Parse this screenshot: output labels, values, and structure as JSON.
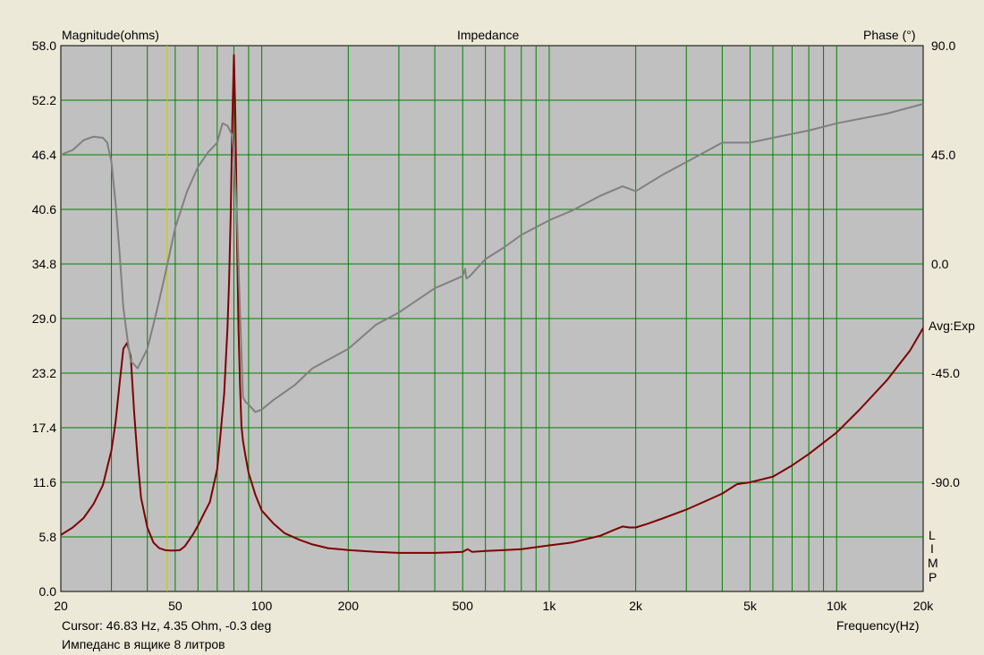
{
  "chart_data": {
    "type": "line",
    "title": "Impedance",
    "xlabel": "Frequency(Hz)",
    "ylabel": "Magnitude(ohms)",
    "y2label": "Phase (°)",
    "x_scale": "log",
    "xlim": [
      20,
      20000
    ],
    "ylim": [
      0,
      58
    ],
    "y2lim": [
      -135,
      90
    ],
    "x_ticks": [
      {
        "value": 20,
        "label": "20"
      },
      {
        "value": 50,
        "label": "50"
      },
      {
        "value": 100,
        "label": "100"
      },
      {
        "value": 200,
        "label": "200"
      },
      {
        "value": 500,
        "label": "500"
      },
      {
        "value": 1000,
        "label": "1k"
      },
      {
        "value": 2000,
        "label": "2k"
      },
      {
        "value": 5000,
        "label": "5k"
      },
      {
        "value": 10000,
        "label": "10k"
      },
      {
        "value": 20000,
        "label": "20k"
      }
    ],
    "x_gridlines": [
      30,
      40,
      50,
      60,
      70,
      80,
      90,
      100,
      200,
      300,
      400,
      500,
      600,
      700,
      800,
      900,
      1000,
      2000,
      3000,
      4000,
      5000,
      6000,
      7000,
      8000,
      9000,
      10000
    ],
    "y_ticks": [
      "58.0",
      "52.2",
      "46.4",
      "40.6",
      "34.8",
      "29.0",
      "23.2",
      "17.4",
      "11.6",
      "5.8",
      "0.0"
    ],
    "y_tick_values": [
      58.0,
      52.2,
      46.4,
      40.6,
      34.8,
      29.0,
      23.2,
      17.4,
      11.6,
      5.8,
      0.0
    ],
    "y2_ticks": [
      "90.0",
      "45.0",
      "0.0",
      "-45.0",
      "-90.0"
    ],
    "y2_tick_values": [
      90,
      45,
      0,
      -45,
      -90
    ],
    "grid": true,
    "colors": {
      "plot_bg": "#c0c0c0",
      "grid": "#008000",
      "magnitude": "#800000",
      "phase": "#808080",
      "cursor": "#c8c800",
      "background": "#ece9d8"
    },
    "cursor_x": 46.83,
    "series": [
      {
        "axis": "left",
        "color": "#800000",
        "x": [
          20,
          22,
          24,
          26,
          28,
          30,
          31,
          32,
          33,
          34,
          35,
          36,
          37,
          38,
          40,
          42,
          44,
          46,
          48,
          50,
          52,
          54,
          56,
          58,
          60,
          63,
          66,
          70,
          72,
          74,
          76,
          77,
          78,
          79,
          80,
          81,
          82,
          83,
          84,
          85,
          86,
          88,
          90,
          95,
          100,
          110,
          120,
          135,
          150,
          170,
          200,
          250,
          300,
          400,
          500,
          520,
          540,
          600,
          700,
          800,
          1000,
          1200,
          1500,
          1700,
          1800,
          1900,
          2000,
          2200,
          2500,
          3000,
          3500,
          4000,
          4500,
          5000,
          6000,
          7000,
          8000,
          10000,
          12000,
          15000,
          18000,
          20000
        ],
        "y": [
          6.0,
          6.8,
          7.8,
          9.3,
          11.3,
          15.0,
          18.0,
          22.0,
          25.8,
          26.4,
          25.0,
          19.0,
          14.0,
          10.0,
          6.8,
          5.2,
          4.6,
          4.4,
          4.35,
          4.35,
          4.4,
          4.8,
          5.5,
          6.2,
          7.0,
          8.3,
          9.5,
          13.0,
          17.0,
          21.0,
          28.0,
          33.0,
          40.0,
          50.0,
          57.0,
          50.0,
          38.0,
          28.0,
          22.0,
          17.6,
          16.0,
          14.2,
          12.6,
          10.3,
          8.6,
          7.2,
          6.2,
          5.5,
          5.0,
          4.6,
          4.4,
          4.2,
          4.1,
          4.1,
          4.2,
          4.5,
          4.2,
          4.3,
          4.4,
          4.5,
          4.9,
          5.2,
          5.9,
          6.6,
          6.9,
          6.8,
          6.8,
          7.2,
          7.8,
          8.7,
          9.6,
          10.4,
          11.4,
          11.6,
          12.2,
          13.4,
          14.6,
          16.9,
          19.3,
          22.5,
          25.6,
          28.0
        ]
      },
      {
        "axis": "right",
        "color": "#808080",
        "x": [
          20,
          22,
          24,
          26,
          28,
          29,
          30,
          31,
          32,
          33,
          34,
          35,
          37,
          40,
          43,
          46,
          50,
          55,
          60,
          65,
          70,
          73,
          76,
          79,
          80,
          82,
          84,
          86,
          88,
          90,
          95,
          100,
          110,
          130,
          150,
          200,
          250,
          300,
          400,
          500,
          510,
          515,
          530,
          600,
          700,
          800,
          1000,
          1200,
          1500,
          1800,
          2000,
          2500,
          3000,
          4000,
          5000,
          6000,
          8000,
          10000,
          15000,
          20000
        ],
        "y": [
          45.0,
          47.0,
          51.0,
          52.5,
          52.0,
          50.0,
          42.0,
          25.0,
          5.0,
          -18.0,
          -30.0,
          -40.0,
          -43.0,
          -35.0,
          -20.0,
          -5.0,
          15.0,
          30.0,
          40.0,
          46.0,
          50.0,
          58.0,
          57.0,
          53.0,
          45.0,
          20.0,
          -20.0,
          -55.0,
          -57.0,
          -58.0,
          -61.0,
          -60.0,
          -56.0,
          -50.0,
          -43.0,
          -35.0,
          -25.0,
          -20.0,
          -10.0,
          -5.0,
          -2.0,
          -6.0,
          -5.0,
          2.0,
          7.0,
          12.0,
          18.0,
          22.0,
          28.0,
          32.0,
          30.0,
          37.0,
          42.0,
          50.0,
          50.0,
          52.0,
          55.0,
          58.0,
          62.0,
          66.0
        ]
      }
    ]
  },
  "labels": {
    "magnitude": "Magnitude(ohms)",
    "title": "Impedance",
    "phase": "Phase (°)",
    "avg": "Avg:Exp",
    "limp": [
      "L",
      "I",
      "M",
      "P"
    ],
    "frequency": "Frequency(Hz)",
    "cursor_readout": "Cursor: 46.83 Hz, 4.35 Ohm, -0.3 deg",
    "caption": "Импеданс в ящике 8 литров"
  }
}
